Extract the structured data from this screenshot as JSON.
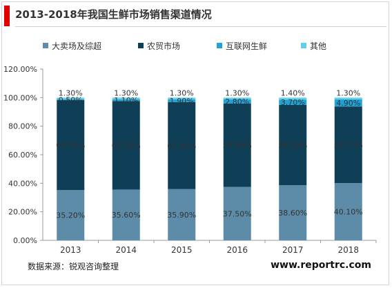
{
  "title": "2013-2018年我国生鲜市场销售渠道情况",
  "source_note": "数据来源：锐观咨询整理",
  "website": "www.reportrc.com",
  "chart_data": {
    "type": "bar",
    "stacked": true,
    "categories": [
      "2013",
      "2014",
      "2015",
      "2016",
      "2017",
      "2018"
    ],
    "series": [
      {
        "name": "大卖场及综超",
        "color": "#5d8ca8",
        "values": [
          35.2,
          35.6,
          35.9,
          37.5,
          38.6,
          40.1
        ],
        "labels": [
          "35.20%",
          "35.60%",
          "35.90%",
          "37.50%",
          "38.60%",
          "40.10%"
        ]
      },
      {
        "name": "农贸市场",
        "color": "#0e3f56",
        "values": [
          63.0,
          62.0,
          60.9,
          58.4,
          56.3,
          53.7
        ],
        "labels": [
          "63.00%",
          "62.00%",
          "60.90%",
          "58.40%",
          "56.30%",
          "53.70%"
        ]
      },
      {
        "name": "互联网生鲜",
        "color": "#1fa2d6",
        "values": [
          0.5,
          1.1,
          1.9,
          2.8,
          3.7,
          4.9
        ],
        "labels": [
          "0.50%",
          "1.10%",
          "1.90%",
          "2.80%",
          "3.70%",
          "4.90%"
        ]
      },
      {
        "name": "其他",
        "color": "#62d0ea",
        "values": [
          1.3,
          1.3,
          1.3,
          1.3,
          1.4,
          1.3
        ],
        "labels": [
          "1.30%",
          "1.30%",
          "1.30%",
          "1.30%",
          "1.40%",
          "1.30%"
        ]
      }
    ],
    "ylim": [
      0,
      120
    ],
    "yticks": [
      0,
      20,
      40,
      60,
      80,
      100,
      120
    ],
    "ytick_labels": [
      "0.00%",
      "20.00%",
      "40.00%",
      "60.00%",
      "80.00%",
      "100.00%",
      "120.00%"
    ],
    "grid": false,
    "legend_position": "top",
    "xlabel": "",
    "ylabel": ""
  }
}
